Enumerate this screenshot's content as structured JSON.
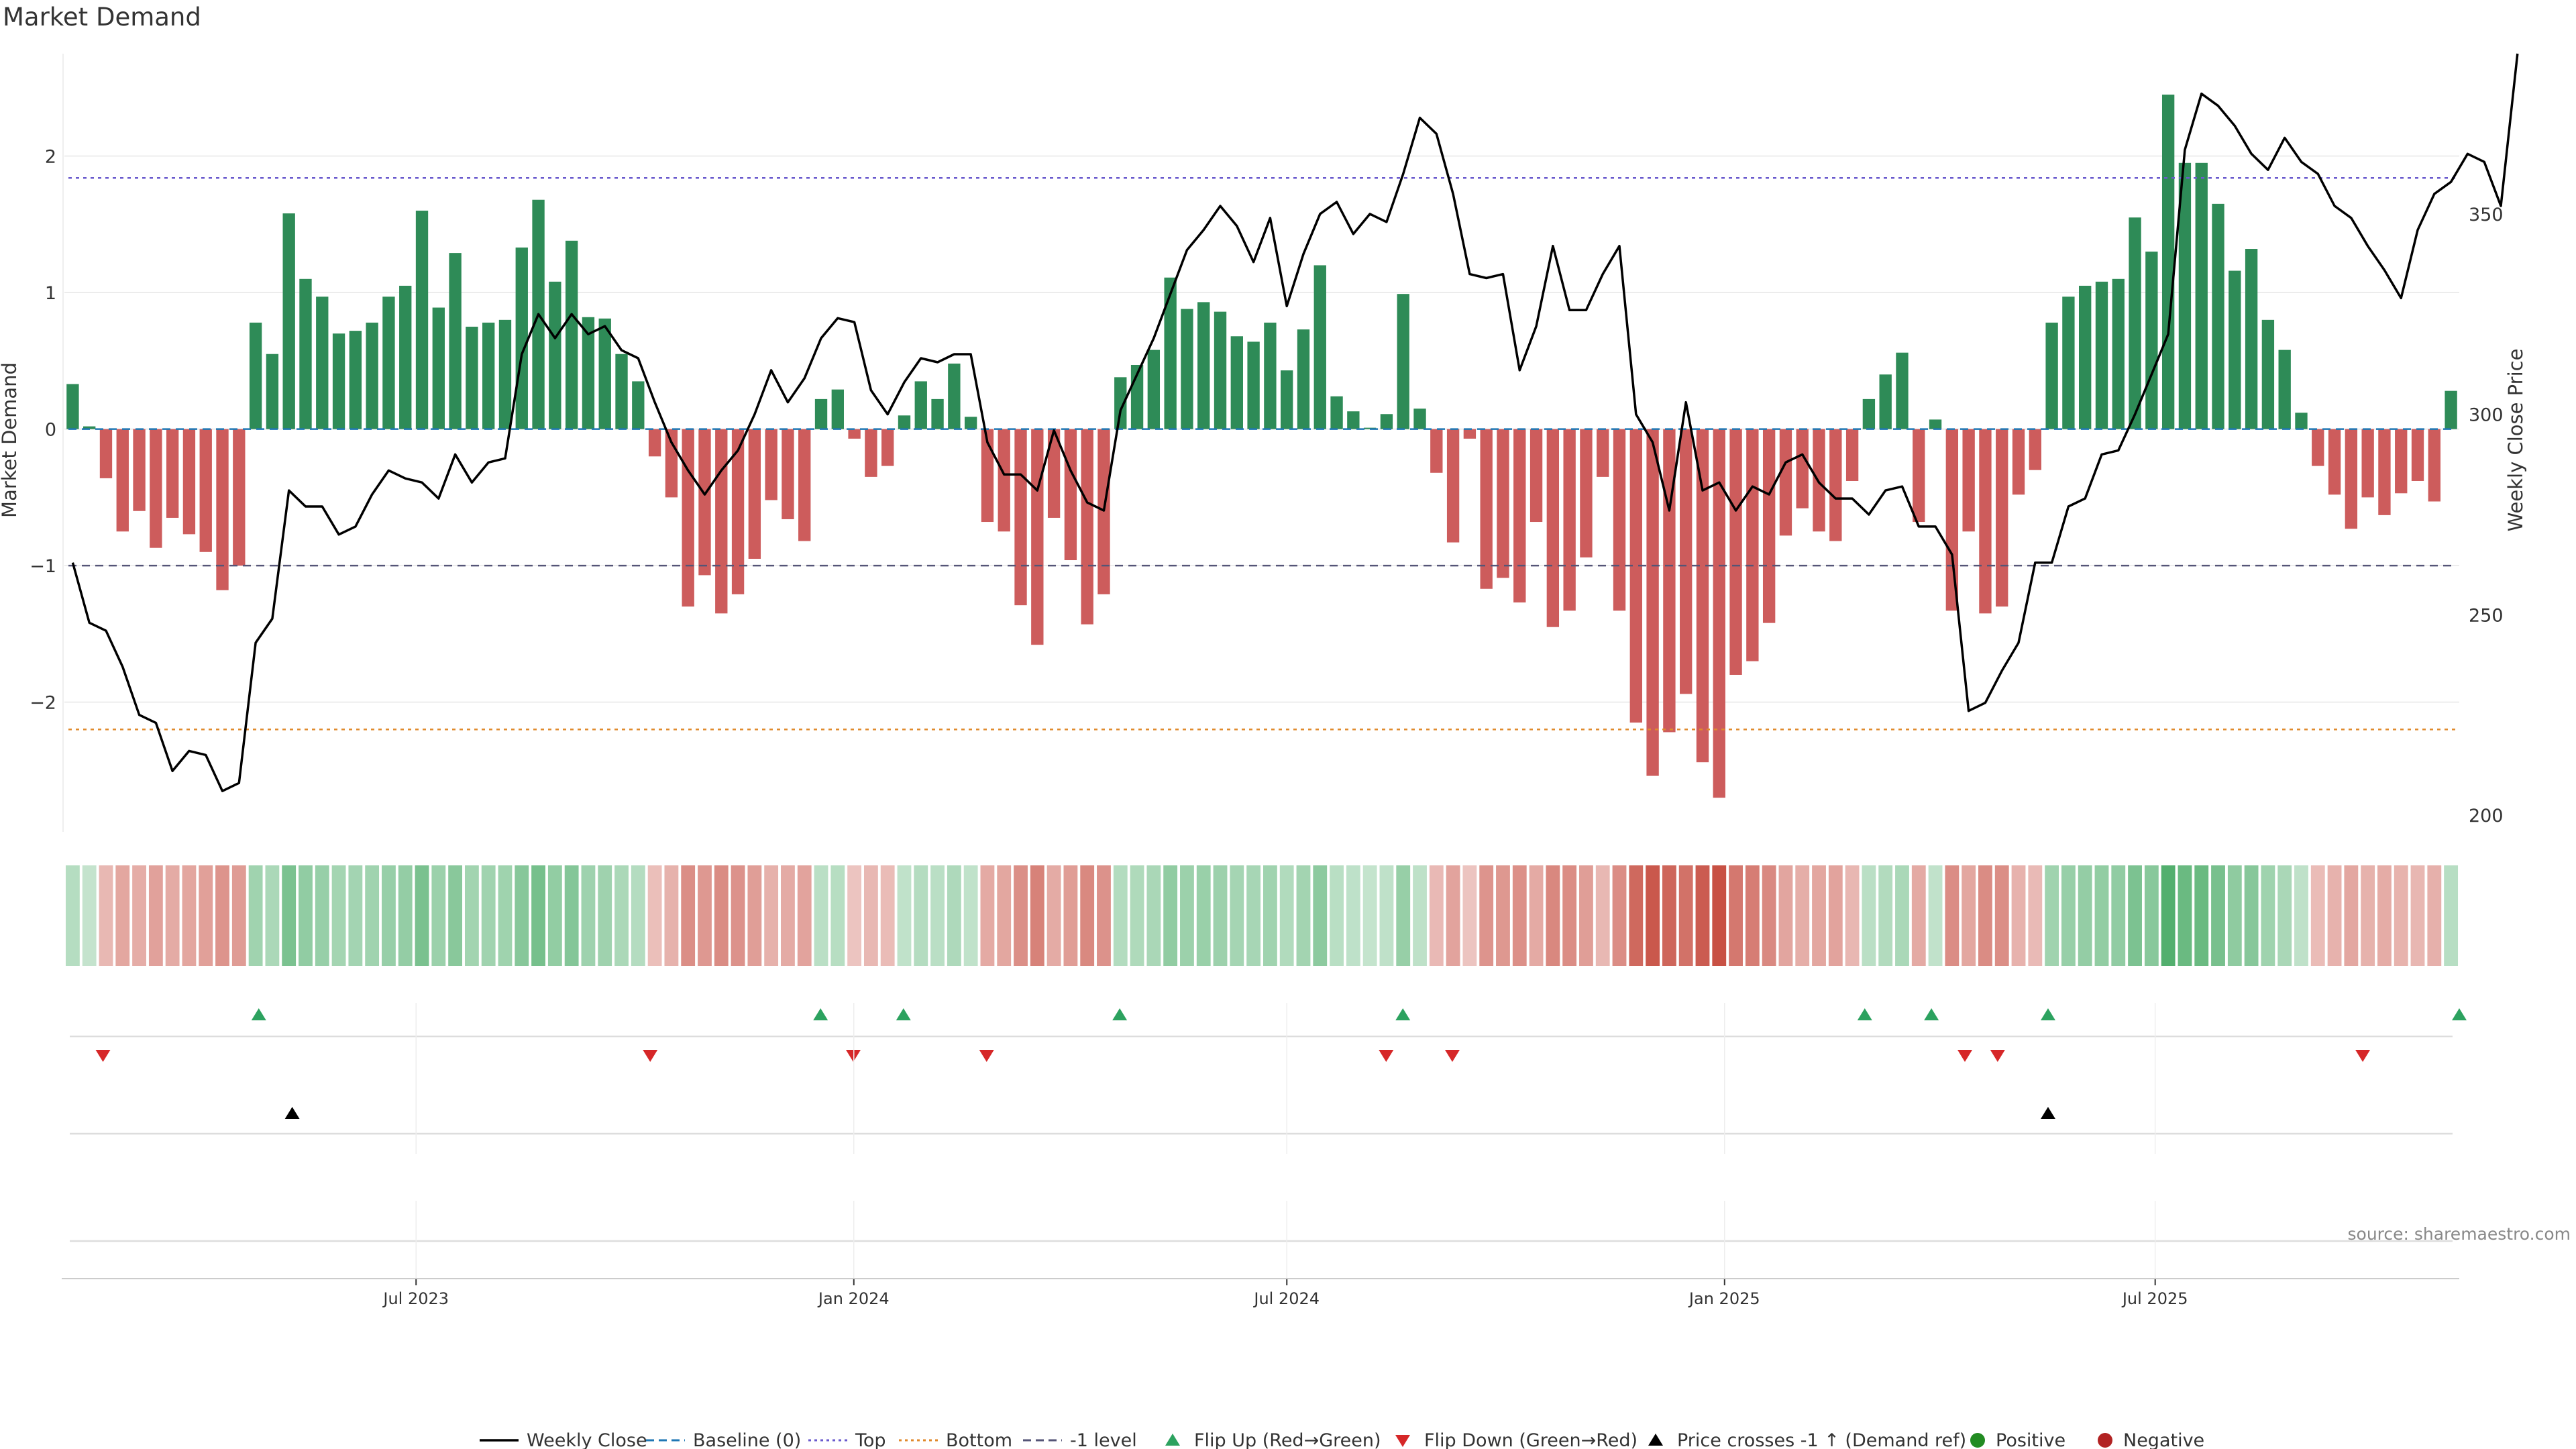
{
  "title": "Market Demand",
  "source_label": "source: sharemaestro.com",
  "chart_data": {
    "type": "bar",
    "title": "Market Demand",
    "ylabel": "Market Demand",
    "y2label": "Weekly Close Price",
    "ylim": [
      -2.95,
      2.75
    ],
    "y2lim": [
      200,
      390
    ],
    "yticks": [
      -2,
      -1,
      0,
      1,
      2
    ],
    "y2ticks": [
      200,
      250,
      300,
      350
    ],
    "x_dates_start": "2023-02-06",
    "x_dates_end": "2025-11-03",
    "x_ticks": [
      {
        "label": "Jul 2023",
        "date": "2023-07-01"
      },
      {
        "label": "Jan 2024",
        "date": "2024-01-01"
      },
      {
        "label": "Jul 2024",
        "date": "2024-07-01"
      },
      {
        "label": "Jan 2025",
        "date": "2025-01-01"
      },
      {
        "label": "Jul 2025",
        "date": "2025-07-01"
      }
    ],
    "reference_lines": [
      {
        "name": "Baseline (0)",
        "value": 0,
        "color": "#1f77b4",
        "style": "dashed"
      },
      {
        "name": "Top",
        "value": 1.84,
        "color": "#6a5acd",
        "style": "dotted"
      },
      {
        "name": "Bottom",
        "value": -2.2,
        "color": "#e08a2c",
        "style": "dotted"
      },
      {
        "name": "-1 level",
        "value": -1,
        "color": "#555577",
        "style": "dashed"
      }
    ],
    "demand": [
      0.33,
      0.02,
      -0.36,
      -0.75,
      -0.6,
      -0.87,
      -0.65,
      -0.77,
      -0.9,
      -1.18,
      -1.0,
      0.78,
      0.55,
      1.58,
      1.1,
      0.97,
      0.7,
      0.72,
      0.78,
      0.97,
      1.05,
      1.6,
      0.89,
      1.29,
      0.75,
      0.78,
      0.8,
      1.33,
      1.68,
      1.08,
      1.38,
      0.82,
      0.81,
      0.55,
      0.35,
      -0.2,
      -0.5,
      -1.3,
      -1.07,
      -1.35,
      -1.21,
      -0.95,
      -0.52,
      -0.66,
      -0.82,
      0.22,
      0.29,
      -0.07,
      -0.35,
      -0.27,
      0.1,
      0.35,
      0.22,
      0.48,
      0.09,
      -0.68,
      -0.75,
      -1.29,
      -1.58,
      -0.65,
      -0.96,
      -1.43,
      -1.21,
      0.38,
      0.47,
      0.58,
      1.11,
      0.88,
      0.93,
      0.86,
      0.68,
      0.64,
      0.78,
      0.43,
      0.73,
      1.2,
      0.24,
      0.13,
      0.01,
      0.11,
      0.99,
      0.15,
      -0.32,
      -0.83,
      -0.07,
      -1.17,
      -1.09,
      -1.27,
      -0.68,
      -1.45,
      -1.33,
      -0.94,
      -0.35,
      -1.33,
      -2.15,
      -2.54,
      -2.22,
      -1.94,
      -2.44,
      -2.7,
      -1.8,
      -1.7,
      -1.42,
      -0.78,
      -0.58,
      -0.75,
      -0.82,
      -0.38,
      0.22,
      0.4,
      0.56,
      -0.68,
      0.07,
      -1.33,
      -0.75,
      -1.35,
      -1.3,
      -0.48,
      -0.3,
      0.78,
      0.97,
      1.05,
      1.08,
      1.1,
      1.55,
      1.3,
      2.45,
      1.95,
      1.95,
      1.65,
      1.16,
      1.32,
      0.8,
      0.58,
      0.12,
      -0.27,
      -0.48,
      -0.73,
      -0.5,
      -0.63,
      -0.47,
      -0.38,
      -0.53,
      0.28
    ],
    "close": [
      263,
      248,
      246,
      237,
      225,
      223,
      211,
      216,
      215,
      206,
      208,
      243,
      249,
      281,
      277,
      277,
      270,
      272,
      280,
      286,
      284,
      283,
      279,
      290,
      283,
      288,
      289,
      315,
      325,
      319,
      325,
      320,
      322,
      316,
      314,
      303,
      293,
      286,
      280,
      286,
      291,
      300,
      311,
      303,
      309,
      319,
      324,
      323,
      306,
      300,
      308,
      314,
      313,
      315,
      315,
      293,
      285,
      285,
      281,
      296,
      286,
      278,
      276,
      301,
      310,
      319,
      330,
      341,
      346,
      352,
      347,
      338,
      349,
      327,
      340,
      350,
      353,
      345,
      350,
      348,
      360,
      374,
      370,
      355,
      335,
      334,
      335,
      311,
      322,
      342,
      326,
      326,
      335,
      342,
      300,
      293,
      276,
      303,
      281,
      283,
      276,
      282,
      280,
      288,
      290,
      283,
      279,
      279,
      275,
      281,
      282,
      272,
      272,
      265,
      226,
      228,
      236,
      243,
      263,
      263,
      277,
      279,
      290,
      291,
      300,
      310,
      320,
      366,
      380,
      377,
      372,
      365,
      361,
      369,
      363,
      360,
      352,
      349,
      342,
      336,
      329,
      346,
      355,
      358,
      365,
      363,
      352,
      390
    ],
    "flips_up": [
      0.0791,
      0.3142,
      0.3489,
      0.4394,
      0.5579,
      0.7512,
      0.7791,
      0.8279,
      1.0
    ],
    "flips_down": [
      0.0139,
      0.2429,
      0.3279,
      0.3837,
      0.5509,
      0.5786,
      0.7931,
      0.8068,
      0.9596
    ],
    "price_cross_up": [
      0.0931,
      0.8279
    ]
  },
  "legend": [
    {
      "label": "Weekly Close",
      "kind": "line",
      "color": "#000000"
    },
    {
      "label": "Baseline (0)",
      "kind": "dash",
      "color": "#1f77b4"
    },
    {
      "label": "Top",
      "kind": "dot",
      "color": "#6a5acd"
    },
    {
      "label": "Bottom",
      "kind": "dot",
      "color": "#e08a2c"
    },
    {
      "label": "-1 level",
      "kind": "dash",
      "color": "#555577"
    },
    {
      "label": "Flip Up (Red→Green)",
      "kind": "tri-up",
      "color": "#2ca25f"
    },
    {
      "label": "Flip Down (Green→Red)",
      "kind": "tri-down",
      "color": "#d62728"
    },
    {
      "label": "Price crosses -1 ↑ (Demand ref)",
      "kind": "tri-up",
      "color": "#000000"
    },
    {
      "label": "Positive",
      "kind": "dot-fill",
      "color": "#228b22"
    },
    {
      "label": "Negative",
      "kind": "dot-fill",
      "color": "#b22222"
    }
  ],
  "colors": {
    "positive_bar": "#2e8b57",
    "negative_bar": "#cd5c5c",
    "heat_positive": "#2e9e4f",
    "heat_negative": "#c0392b",
    "grid": "#e6e6e6"
  }
}
